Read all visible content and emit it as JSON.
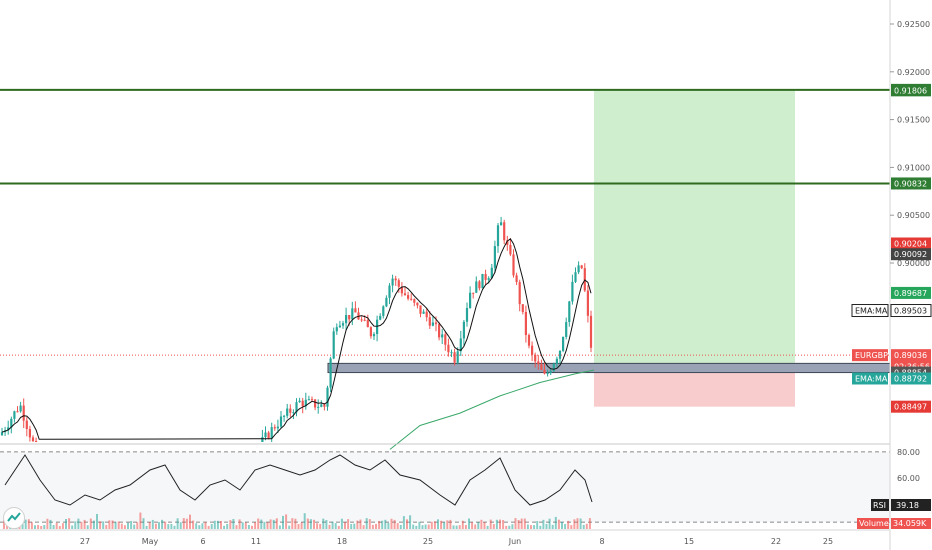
{
  "chart_data": {
    "type": "candlestick",
    "symbol": "EURGBP",
    "price_axis": {
      "ticks": [
        "0.92500",
        "0.92000",
        "0.91500",
        "0.91000",
        "0.90500",
        "0.90000"
      ],
      "ylim": [
        0.883,
        0.928
      ]
    },
    "time_axis": {
      "ticks": [
        "27",
        "May",
        "6",
        "11",
        "18",
        "25",
        "Jun",
        "8",
        "15",
        "22",
        "25"
      ]
    },
    "levels": {
      "resistance_1": 0.91811,
      "resistance_2": 0.90832,
      "support_zone": [
        0.88854,
        0.8895
      ]
    },
    "position": {
      "target": 0.91806,
      "entry": 0.88854,
      "stop": 0.88497
    },
    "price_labels": [
      {
        "text": "0.91811",
        "value": 0.91811,
        "color": "#2e7d32"
      },
      {
        "text": "0.91806",
        "value": 0.91806,
        "color": "#2e7d32"
      },
      {
        "text": "0.90832",
        "value": 0.90832,
        "color": "#2e7d32"
      },
      {
        "text": "0.90204",
        "value": 0.90204,
        "color": "#e53935"
      },
      {
        "text": "0.90092",
        "value": 0.90092,
        "color": "#444444"
      },
      {
        "text": "0.89687",
        "value": 0.89687,
        "color": "#26a65b"
      },
      {
        "text": "0.89503",
        "value": 0.89503,
        "color": "#222222",
        "prefix": "EMA:MA"
      },
      {
        "text": "0.89036",
        "value": 0.89036,
        "color": "#ef5350",
        "prefix": "EURGBP"
      },
      {
        "text": "02:36:56",
        "value": 0.88915,
        "color": "#ef5350"
      },
      {
        "text": "0.88854",
        "value": 0.88854,
        "color": "#555555"
      },
      {
        "text": "0.88792",
        "value": 0.88792,
        "color": "#26a69a",
        "prefix": "EMA:MA"
      },
      {
        "text": "0.88497",
        "value": 0.88497,
        "color": "#e53935"
      }
    ],
    "rsi": {
      "label": "RSI",
      "value": "39.18",
      "ticks": [
        "80.00",
        "60.00"
      ]
    },
    "volume": {
      "label": "Volume",
      "value": "34.059K"
    }
  }
}
